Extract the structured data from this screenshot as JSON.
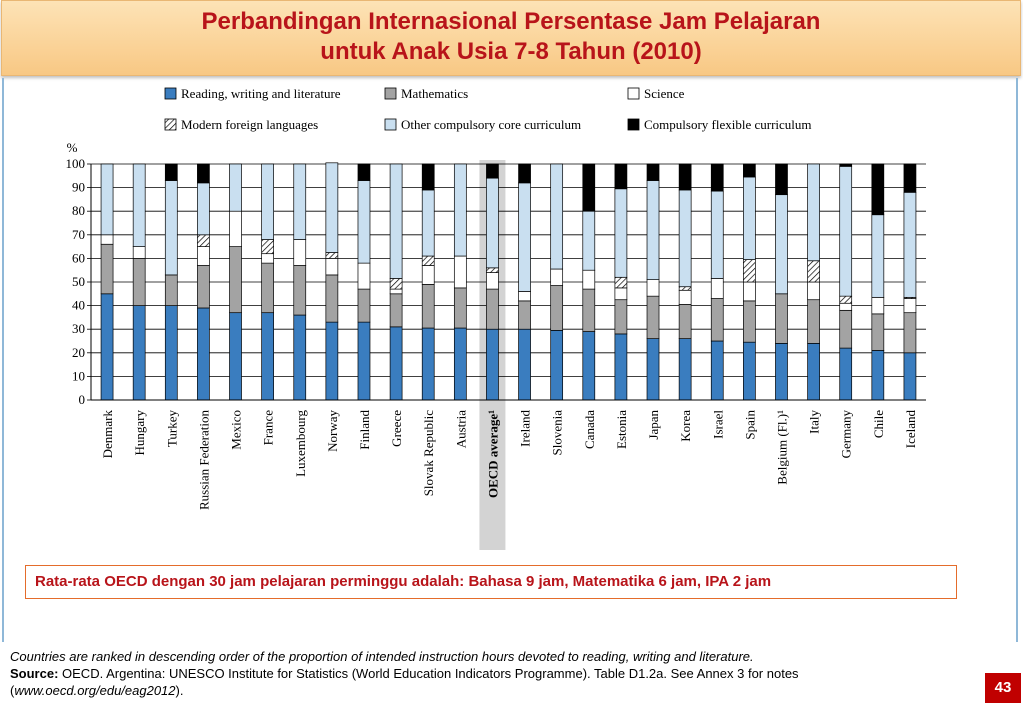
{
  "title": {
    "line1": "Perbandingan Internasional Persentase Jam Pelajaran",
    "line2": "untuk Anak Usia 7-8 Tahun (2010)"
  },
  "callout": "Rata-rata OECD dengan 30 jam pelajaran perminggu adalah: Bahasa 9 jam, Matematika 6 jam, IPA 2 jam",
  "footnote": {
    "line1": "Countries are ranked in descending order of the proportion of intended instruction hours devoted to reading, writing and literature.",
    "source_label": "Source:",
    "source_text": " OECD. Argentina: UNESCO Institute for Statistics (World Education Indicators Programme). Table D1.2a. See Annex 3 for notes",
    "line3_open": "(",
    "url": "www.oecd.org/edu/eag2012",
    "line3_close": ")."
  },
  "page_number": "43",
  "colors": {
    "reading": "#3a7dbf",
    "math": "#a3a3a3",
    "science": "#ffffff",
    "foreign": "#ffffff",
    "other": "#c9dff0",
    "flexible": "#000000",
    "highlight": "#d3d3d3"
  },
  "chart_data": {
    "type": "bar",
    "stacked": true,
    "ylabel": "%",
    "ylim": [
      0,
      100
    ],
    "yticks": [
      0,
      10,
      20,
      30,
      40,
      50,
      60,
      70,
      80,
      90,
      100
    ],
    "grid": true,
    "highlighted_category": "OECD average¹",
    "categories": [
      "Denmark",
      "Hungary",
      "Turkey",
      "Russian Federation",
      "Mexico",
      "France",
      "Luxembourg",
      "Norway",
      "Finland",
      "Greece",
      "Slovak Republic",
      "Austria",
      "OECD average¹",
      "Ireland",
      "Slovenia",
      "Canada",
      "Estonia",
      "Japan",
      "Korea",
      "Israel",
      "Spain",
      "Belgium (Fl.)¹",
      "Italy",
      "Germany",
      "Chile",
      "Iceland"
    ],
    "series": [
      {
        "name": "Reading, writing and literature",
        "key": "reading",
        "values": [
          45,
          40,
          40,
          39,
          37,
          37,
          36,
          33,
          33,
          31,
          30.5,
          30.5,
          30,
          30,
          29.5,
          29,
          28,
          26,
          26,
          25,
          24.5,
          24,
          24,
          22,
          21,
          20
        ]
      },
      {
        "name": "Mathematics",
        "key": "math",
        "values": [
          21,
          20,
          13,
          18,
          28,
          21,
          21,
          20,
          14,
          14,
          18.5,
          17,
          17,
          12,
          19,
          18,
          14.5,
          18,
          14.5,
          18,
          17.5,
          21,
          18.5,
          16,
          15.5,
          17
        ]
      },
      {
        "name": "Science",
        "key": "science",
        "values": [
          4,
          5,
          0,
          8,
          15,
          4,
          11,
          7,
          11,
          2,
          8,
          13.5,
          7,
          4,
          7,
          8,
          5,
          7,
          6,
          8.5,
          8,
          0,
          7.5,
          3,
          7,
          6
        ]
      },
      {
        "name": "Modern foreign languages",
        "key": "foreign",
        "values": [
          0,
          0,
          0,
          5,
          0,
          6,
          0,
          2.5,
          0,
          4.5,
          4,
          0,
          2,
          0,
          0,
          0,
          4.5,
          0,
          1.5,
          0,
          9.5,
          0,
          9,
          3,
          0,
          0.5
        ]
      },
      {
        "name": "Other compulsory core curriculum",
        "key": "other",
        "values": [
          30,
          35,
          40,
          22,
          20,
          32,
          32,
          38,
          35,
          48.5,
          28,
          39,
          38,
          46,
          44.5,
          25,
          37.5,
          42,
          41,
          37,
          35,
          42,
          41,
          55,
          35,
          44.5
        ]
      },
      {
        "name": "Compulsory flexible curriculum",
        "key": "flexible",
        "values": [
          0,
          0,
          7,
          8,
          0,
          0,
          0,
          0,
          7,
          0,
          11,
          0,
          6,
          8,
          0,
          20,
          10.5,
          7,
          11,
          11.5,
          5.5,
          13,
          0,
          1,
          21.5,
          12
        ]
      }
    ],
    "legend": {
      "placement": "top",
      "rows": [
        [
          "reading",
          "math",
          "science"
        ],
        [
          "foreign",
          "other",
          "flexible"
        ]
      ]
    }
  }
}
